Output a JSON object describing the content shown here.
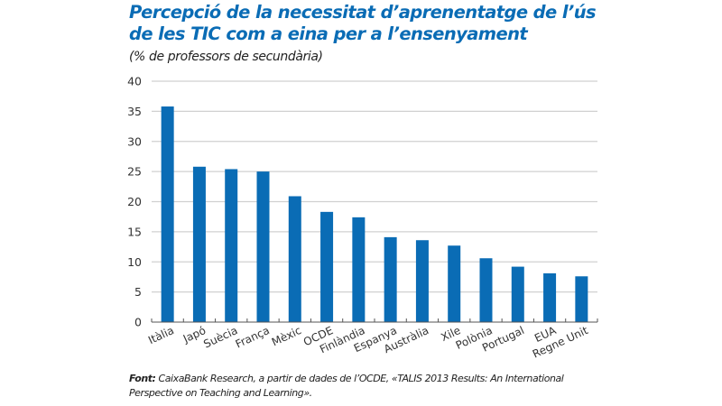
{
  "chart_data": {
    "type": "bar",
    "title": "Percepció de la necessitat d’aprenentatge de l’ús de les TIC com a eina per a l’ensenyament",
    "title_lines": [
      "Percepció de la necessitat d’aprenentatge de l’ús",
      "de les TIC com a eina per a l’ensenyament"
    ],
    "subtitle": "(% de professors de secundària)",
    "xlabel": "",
    "ylabel": "",
    "categories": [
      "Itàlia",
      "Japó",
      "Suècia",
      "França",
      "Mèxic",
      "OCDE",
      "Finlàndia",
      "Espanya",
      "Austràlia",
      "Xile",
      "Polònia",
      "Portugal",
      "EUA",
      "Regne Unit"
    ],
    "values": [
      35.8,
      25.8,
      25.4,
      25.0,
      20.9,
      18.3,
      17.4,
      14.1,
      13.6,
      12.7,
      10.6,
      9.2,
      8.1,
      7.6
    ],
    "ylim": [
      0,
      40
    ],
    "yticks": [
      0,
      5,
      10,
      15,
      20,
      25,
      30,
      35,
      40
    ],
    "grid": true,
    "legend": "none",
    "bar_color": "#0a6cb5",
    "grid_color": "#d0d0d0"
  },
  "source": {
    "label": "Font:",
    "text": " CaixaBank Research, a partir de dades de l’OCDE, «TALIS 2013 Results: An International Perspective on Teaching and Learning»."
  }
}
